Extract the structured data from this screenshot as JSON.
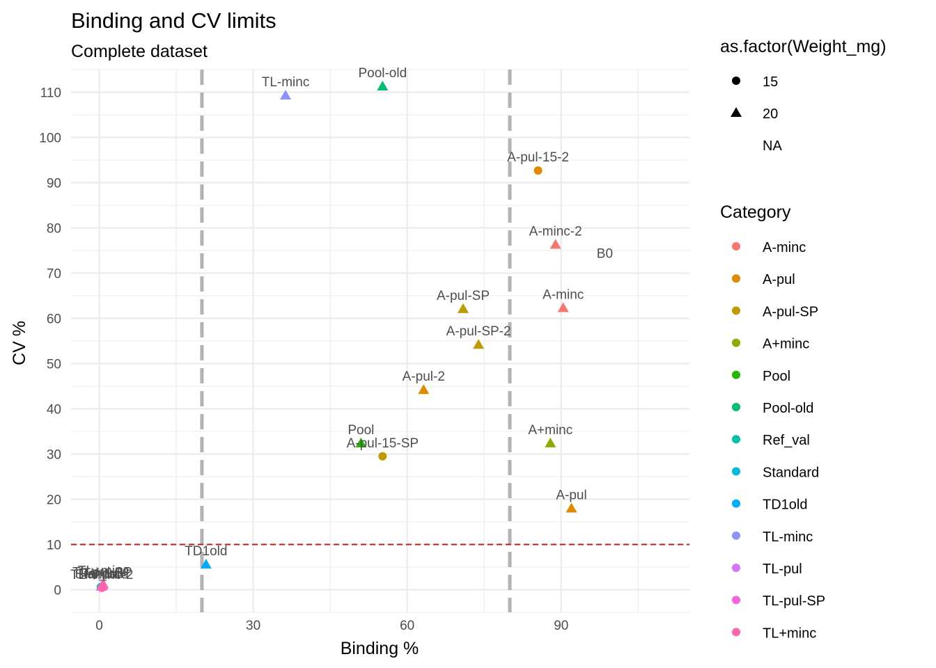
{
  "chart_data": {
    "type": "scatter",
    "title": "Binding and CV limits",
    "subtitle": "Complete dataset",
    "xlabel": "Binding %",
    "ylabel": "CV %",
    "xlim": [
      -5.5,
      115
    ],
    "ylim": [
      -5,
      115
    ],
    "x_ticks": [
      0,
      30,
      60,
      90
    ],
    "y_ticks": [
      0,
      10,
      20,
      30,
      40,
      50,
      60,
      70,
      80,
      90,
      100,
      110
    ],
    "x_tick_labels": [
      "0",
      "30",
      "60",
      "90"
    ],
    "y_tick_labels": [
      "0",
      "10",
      "20",
      "30",
      "40",
      "50",
      "60",
      "70",
      "80",
      "90",
      "100",
      "110"
    ],
    "grid": true,
    "vlines": [
      {
        "x": 20,
        "color": "#b3b3b3",
        "style": "dashed"
      },
      {
        "x": 80,
        "color": "#b3b3b3",
        "style": "dashed"
      }
    ],
    "hlines": [
      {
        "y": 10,
        "color": "#b22222",
        "style": "dashed"
      }
    ],
    "points": [
      {
        "label": "TL-minc",
        "x": 36.3,
        "y": 109.3,
        "shape": "triangle",
        "category": "TL-minc"
      },
      {
        "label": "Pool-old",
        "x": 55.2,
        "y": 111.3,
        "shape": "triangle",
        "category": "Pool-old"
      },
      {
        "label": "A-pul-15-2",
        "x": 85.5,
        "y": 92.7,
        "shape": "circle",
        "category": "A-pul"
      },
      {
        "label": "A-minc-2",
        "x": 88.9,
        "y": 76.3,
        "shape": "triangle",
        "category": "A-minc"
      },
      {
        "label": "B0",
        "x": null,
        "y": null,
        "shape": "none",
        "category": "NA",
        "label_x": 98.5,
        "label_y": 74.5
      },
      {
        "label": "A-pul-SP",
        "x": 70.9,
        "y": 62.1,
        "shape": "triangle",
        "category": "A-pul-SP"
      },
      {
        "label": "A-minc",
        "x": 90.4,
        "y": 62.3,
        "shape": "triangle",
        "category": "A-minc"
      },
      {
        "label": "A-pul-SP-2",
        "x": 73.9,
        "y": 54.2,
        "shape": "triangle",
        "category": "A-pul-SP"
      },
      {
        "label": "A-pul-2",
        "x": 63.2,
        "y": 44.2,
        "shape": "triangle",
        "category": "A-pul"
      },
      {
        "label": "Pool",
        "x": 51.0,
        "y": 32.4,
        "shape": "triangle",
        "category": "Pool"
      },
      {
        "label": "A-pul-15-SP",
        "x": 55.2,
        "y": 29.5,
        "shape": "circle",
        "category": "A-pul-SP"
      },
      {
        "label": "A+minc",
        "x": 87.9,
        "y": 32.4,
        "shape": "triangle",
        "category": "A+minc"
      },
      {
        "label": "A-pul",
        "x": 92.0,
        "y": 18.0,
        "shape": "triangle",
        "category": "A-pul"
      },
      {
        "label": "TD1old",
        "x": 20.8,
        "y": 5.6,
        "shape": "triangle",
        "category": "TD1old"
      },
      {
        "label": "Ref_val",
        "x": 0.3,
        "y": 0.6,
        "shape": "circle",
        "category": "Ref_val"
      },
      {
        "label": "Standard",
        "x": 0.5,
        "y": 0.5,
        "shape": "circle",
        "category": "Standard"
      },
      {
        "label": "TL-pul",
        "x": 0.4,
        "y": 0.7,
        "shape": "triangle",
        "category": "TL-pul"
      },
      {
        "label": "TL-pul-SP",
        "x": 0.6,
        "y": 0.9,
        "shape": "triangle",
        "category": "TL-pul-SP"
      },
      {
        "label": "TL+minc",
        "x": 0.8,
        "y": 1.2,
        "shape": "triangle",
        "category": "TL+minc"
      },
      {
        "label": "TL+minc-2",
        "x": 0.5,
        "y": 0.4,
        "shape": "circle",
        "category": "TL+minc"
      }
    ],
    "legend": {
      "placement": "right",
      "shape_title": "as.factor(Weight_mg)",
      "shape_items": [
        {
          "label": "15",
          "shape": "circle"
        },
        {
          "label": "20",
          "shape": "triangle"
        },
        {
          "label": "NA",
          "shape": "none"
        }
      ],
      "color_title": "Category",
      "color_items": [
        {
          "label": "A-minc",
          "color": "#F8766D"
        },
        {
          "label": "A-pul",
          "color": "#E18A00"
        },
        {
          "label": "A-pul-SP",
          "color": "#BE9C00"
        },
        {
          "label": "A+minc",
          "color": "#8CAB00"
        },
        {
          "label": "Pool",
          "color": "#24B700"
        },
        {
          "label": "Pool-old",
          "color": "#00BE70"
        },
        {
          "label": "Ref_val",
          "color": "#00C1AB"
        },
        {
          "label": "Standard",
          "color": "#00BBDA"
        },
        {
          "label": "TD1old",
          "color": "#00ACFC"
        },
        {
          "label": "TL-minc",
          "color": "#8B93FF"
        },
        {
          "label": "TL-pul",
          "color": "#D575FE"
        },
        {
          "label": "TL-pul-SP",
          "color": "#F962DD"
        },
        {
          "label": "TL+minc",
          "color": "#FF65AC"
        }
      ]
    }
  }
}
